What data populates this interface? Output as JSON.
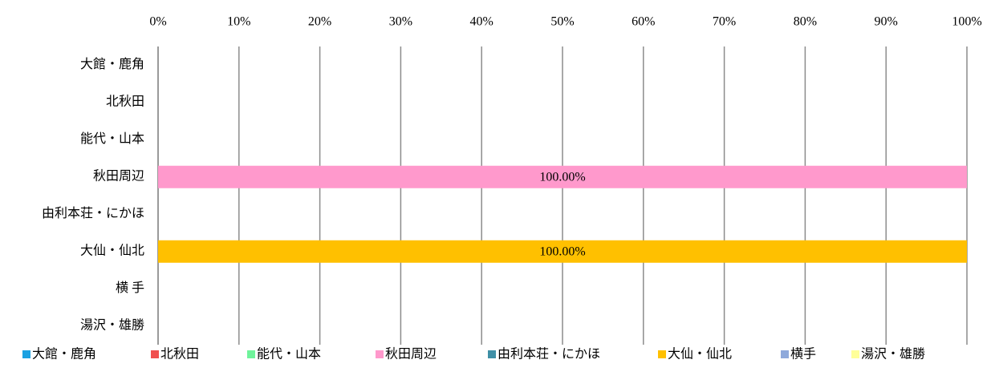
{
  "chart_data": {
    "type": "bar",
    "orientation": "horizontal",
    "stacked": true,
    "categories": [
      "大館・鹿角",
      "北秋田",
      "能代・山本",
      "秋田周辺",
      "由利本荘・にかほ",
      "大仙・仙北",
      "横 手",
      "湯沢・雄勝"
    ],
    "series": [
      {
        "name": "大館・鹿角",
        "color": "#1ba1e2",
        "values": [
          0,
          0,
          0,
          0,
          0,
          0,
          0,
          0
        ],
        "value_labels": [
          null,
          null,
          null,
          null,
          null,
          null,
          null,
          null
        ]
      },
      {
        "name": "北秋田",
        "color": "#f0504f",
        "values": [
          0,
          0,
          0,
          0,
          0,
          0,
          0,
          0
        ],
        "value_labels": [
          null,
          null,
          null,
          null,
          null,
          null,
          null,
          null
        ]
      },
      {
        "name": "能代・山本",
        "color": "#6ff39b",
        "values": [
          0,
          0,
          0,
          0,
          0,
          0,
          0,
          0
        ],
        "value_labels": [
          null,
          null,
          null,
          null,
          null,
          null,
          null,
          null
        ]
      },
      {
        "name": "秋田周辺",
        "color": "#ff99cc",
        "values": [
          0,
          0,
          0,
          100,
          0,
          0,
          0,
          0
        ],
        "value_labels": [
          null,
          null,
          null,
          "100.00%",
          null,
          null,
          null,
          null
        ]
      },
      {
        "name": "由利本荘・にかほ",
        "color": "#3f8fa6",
        "values": [
          0,
          0,
          0,
          0,
          0,
          0,
          0,
          0
        ],
        "value_labels": [
          null,
          null,
          null,
          null,
          null,
          null,
          null,
          null
        ]
      },
      {
        "name": "大仙・仙北",
        "color": "#ffc000",
        "values": [
          0,
          0,
          0,
          0,
          0,
          100,
          0,
          0
        ],
        "value_labels": [
          null,
          null,
          null,
          null,
          null,
          "100.00%",
          null,
          null
        ]
      },
      {
        "name": "横手",
        "color": "#8ea9db",
        "values": [
          0,
          0,
          0,
          0,
          0,
          0,
          0,
          0
        ],
        "value_labels": [
          null,
          null,
          null,
          null,
          null,
          null,
          null,
          null
        ]
      },
      {
        "name": "湯沢・雄勝",
        "color": "#ffff99",
        "values": [
          0,
          0,
          0,
          0,
          0,
          0,
          0,
          0
        ],
        "value_labels": [
          null,
          null,
          null,
          null,
          null,
          null,
          null,
          null
        ]
      }
    ],
    "xlim": [
      0,
      100
    ],
    "xticks": [
      {
        "value": 0,
        "label": "0%"
      },
      {
        "value": 10,
        "label": "10%"
      },
      {
        "value": 20,
        "label": "20%"
      },
      {
        "value": 30,
        "label": "30%"
      },
      {
        "value": 40,
        "label": "40%"
      },
      {
        "value": 50,
        "label": "50%"
      },
      {
        "value": 60,
        "label": "60%"
      },
      {
        "value": 70,
        "label": "70%"
      },
      {
        "value": 80,
        "label": "80%"
      },
      {
        "value": 90,
        "label": "90%"
      },
      {
        "value": 100,
        "label": "100%"
      }
    ],
    "grid": true,
    "legend": "bottom"
  }
}
